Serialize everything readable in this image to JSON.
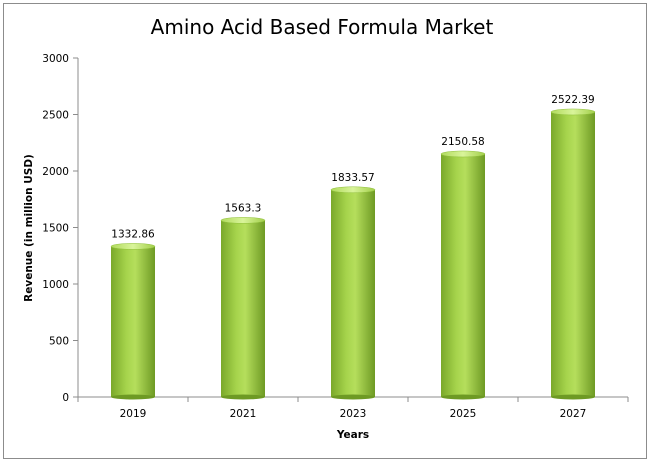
{
  "chart_data": {
    "type": "bar",
    "title": "Amino Acid Based Formula Market",
    "xlabel": "Years",
    "ylabel": "Revenue (in million USD)",
    "categories": [
      "2019",
      "2021",
      "2023",
      "2025",
      "2027"
    ],
    "values": [
      1332.86,
      1563.3,
      1833.57,
      2150.58,
      2522.39
    ],
    "data_labels": [
      "1332.86",
      "1563.3",
      "1833.57",
      "2150.58",
      "2522.39"
    ],
    "ylim": [
      0,
      3000
    ],
    "yticks": [
      0,
      500,
      1000,
      1500,
      2000,
      2500,
      3000
    ],
    "grid": false,
    "legend": "none",
    "colors": {
      "bar_light": "#c6ea7a",
      "bar_mid": "#92c63b",
      "bar_dark": "#5e8f1e",
      "axis": "#8c8c8c"
    }
  }
}
